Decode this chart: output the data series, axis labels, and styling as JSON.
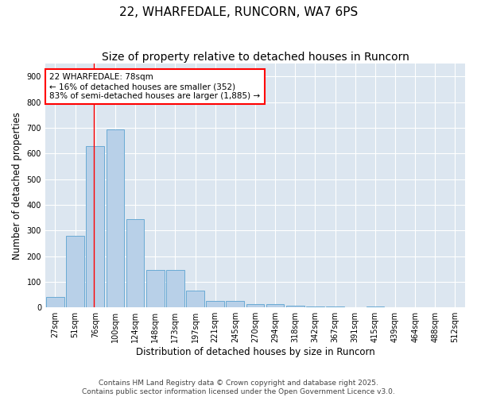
{
  "title": "22, WHARFEDALE, RUNCORN, WA7 6PS",
  "subtitle": "Size of property relative to detached houses in Runcorn",
  "xlabel": "Distribution of detached houses by size in Runcorn",
  "ylabel": "Number of detached properties",
  "categories": [
    "27sqm",
    "51sqm",
    "76sqm",
    "100sqm",
    "124sqm",
    "148sqm",
    "173sqm",
    "197sqm",
    "221sqm",
    "245sqm",
    "270sqm",
    "294sqm",
    "318sqm",
    "342sqm",
    "367sqm",
    "391sqm",
    "415sqm",
    "439sqm",
    "464sqm",
    "488sqm",
    "512sqm"
  ],
  "values": [
    40,
    280,
    630,
    695,
    345,
    145,
    145,
    65,
    25,
    25,
    12,
    12,
    8,
    5,
    5,
    0,
    5,
    0,
    0,
    0,
    0
  ],
  "bar_color": "#b8d0e8",
  "bar_edge_color": "#6aaad4",
  "bg_color": "#dce6f0",
  "grid_color": "#ffffff",
  "red_line_x": 1.92,
  "annotation_text": "22 WHARFEDALE: 78sqm\n← 16% of detached houses are smaller (352)\n83% of semi-detached houses are larger (1,885) →",
  "ylim": [
    0,
    950
  ],
  "yticks": [
    0,
    100,
    200,
    300,
    400,
    500,
    600,
    700,
    800,
    900
  ],
  "footer": "Contains HM Land Registry data © Crown copyright and database right 2025.\nContains public sector information licensed under the Open Government Licence v3.0.",
  "title_fontsize": 11,
  "subtitle_fontsize": 10,
  "axis_label_fontsize": 8.5,
  "tick_fontsize": 7,
  "footer_fontsize": 6.5,
  "annotation_fontsize": 7.5
}
